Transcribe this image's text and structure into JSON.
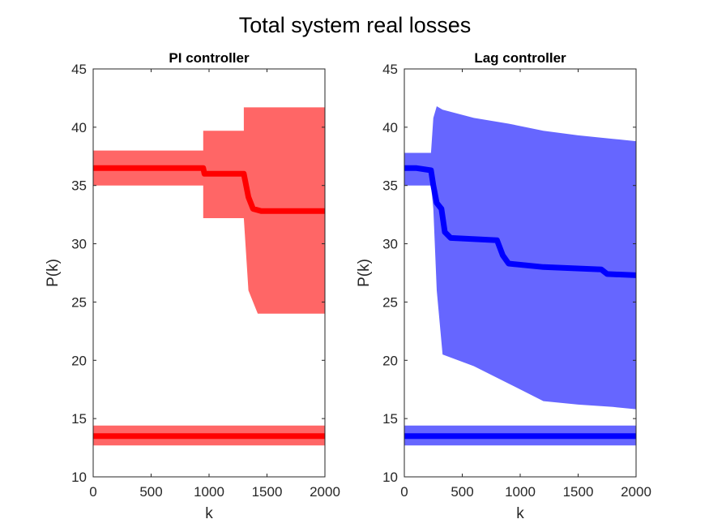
{
  "figure": {
    "title": "Total system real losses"
  },
  "chart_data": [
    {
      "type": "line",
      "title": "PI controller",
      "xlabel": "k",
      "ylabel": "P(k)",
      "xlim": [
        0,
        2000
      ],
      "ylim": [
        10,
        45
      ],
      "xticks": [
        "0",
        "500",
        "1000",
        "1500",
        "2000"
      ],
      "yticks": [
        "10",
        "15",
        "20",
        "25",
        "30",
        "35",
        "40",
        "45"
      ],
      "grid": false,
      "colors": {
        "band": "#ff6666",
        "line": "#ff0000"
      },
      "series": [
        {
          "kind": "band",
          "x": [
            0,
            950,
            950,
            1300,
            1300,
            1340,
            1420,
            2000
          ],
          "upper": [
            38.0,
            38.0,
            39.7,
            39.7,
            41.7,
            41.7,
            41.7,
            41.7
          ],
          "lower": [
            35.0,
            35.0,
            32.2,
            32.2,
            32.2,
            26.0,
            24.0,
            24.0
          ]
        },
        {
          "kind": "line",
          "x": [
            0,
            950,
            960,
            1300,
            1340,
            1380,
            1450,
            2000
          ],
          "y": [
            36.5,
            36.5,
            36.0,
            36.0,
            34.0,
            33.0,
            32.8,
            32.8
          ]
        },
        {
          "kind": "band",
          "x": [
            0,
            2000
          ],
          "upper": [
            14.4,
            14.4
          ],
          "lower": [
            12.7,
            12.7
          ]
        },
        {
          "kind": "line",
          "x": [
            0,
            2000
          ],
          "y": [
            13.5,
            13.5
          ]
        }
      ]
    },
    {
      "type": "line",
      "title": "Lag controller",
      "xlabel": "k",
      "ylabel": "P(k)",
      "xlim": [
        0,
        2000
      ],
      "ylim": [
        10,
        45
      ],
      "xticks": [
        "0",
        "500",
        "1000",
        "1500",
        "2000"
      ],
      "yticks": [
        "10",
        "15",
        "20",
        "25",
        "30",
        "35",
        "40",
        "45"
      ],
      "grid": false,
      "colors": {
        "band": "#6666ff",
        "line": "#0000ff"
      },
      "series": [
        {
          "kind": "band",
          "x": [
            0,
            230,
            250,
            280,
            330,
            600,
            900,
            1200,
            1500,
            1800,
            2000
          ],
          "upper": [
            37.8,
            37.8,
            40.8,
            41.8,
            41.5,
            40.8,
            40.3,
            39.7,
            39.3,
            39.0,
            38.8
          ],
          "lower": [
            35.0,
            35.0,
            33.0,
            26.0,
            20.5,
            19.5,
            18.0,
            16.5,
            16.2,
            16.0,
            15.8
          ]
        },
        {
          "kind": "line",
          "x": [
            0,
            100,
            230,
            250,
            280,
            320,
            350,
            400,
            800,
            850,
            900,
            1200,
            1700,
            1750,
            2000
          ],
          "y": [
            36.5,
            36.5,
            36.3,
            35.0,
            33.5,
            33.0,
            31.0,
            30.5,
            30.3,
            29.0,
            28.3,
            28.0,
            27.8,
            27.4,
            27.3
          ]
        },
        {
          "kind": "band",
          "x": [
            0,
            2000
          ],
          "upper": [
            14.4,
            14.4
          ],
          "lower": [
            12.7,
            12.7
          ]
        },
        {
          "kind": "line",
          "x": [
            0,
            2000
          ],
          "y": [
            13.5,
            13.5
          ]
        }
      ]
    }
  ]
}
